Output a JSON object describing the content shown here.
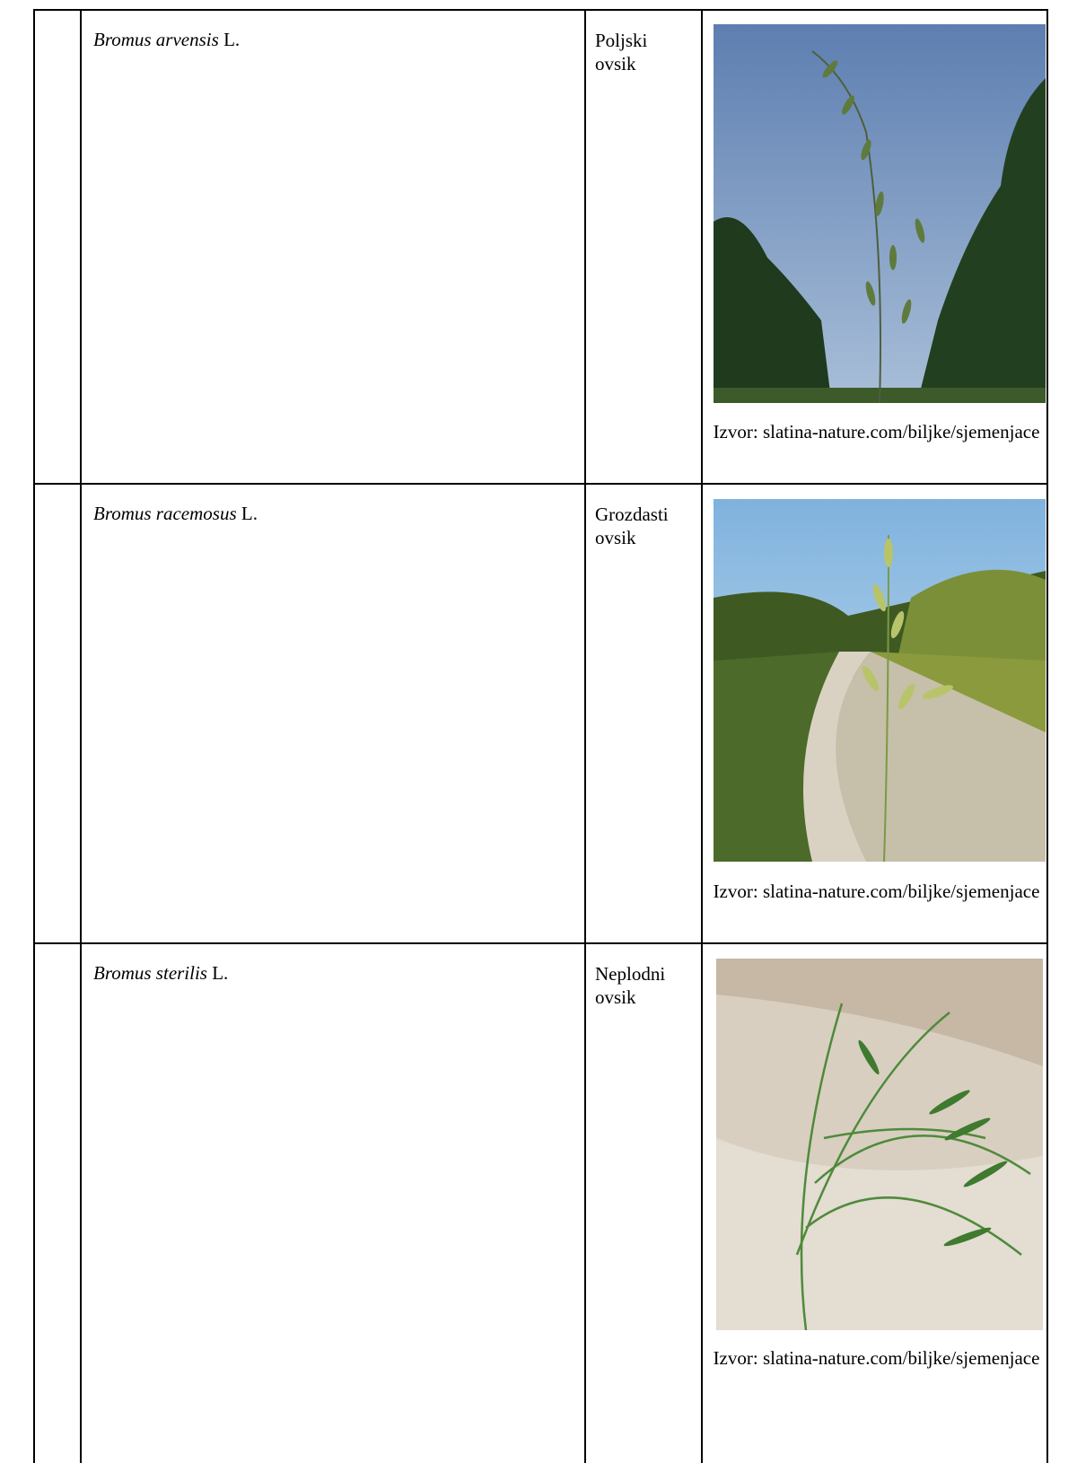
{
  "table": {
    "rows": [
      {
        "species_italic": "Bromus arvensis",
        "authority": "L.",
        "common_name": "Poljski ovsik",
        "caption": "Izvor: slatina-nature.com/biljke/sjemenjace"
      },
      {
        "species_italic": "Bromus racemosus",
        "authority": "L.",
        "common_name": "Grozdasti ovsik",
        "caption": "Izvor: slatina-nature.com/biljke/sjemenjace"
      },
      {
        "species_italic": "Bromus sterilis",
        "authority": "L.",
        "common_name": "Neplodni ovsik",
        "caption": "Izvor: slatina-nature.com/biljke/sjemenjace"
      }
    ]
  }
}
